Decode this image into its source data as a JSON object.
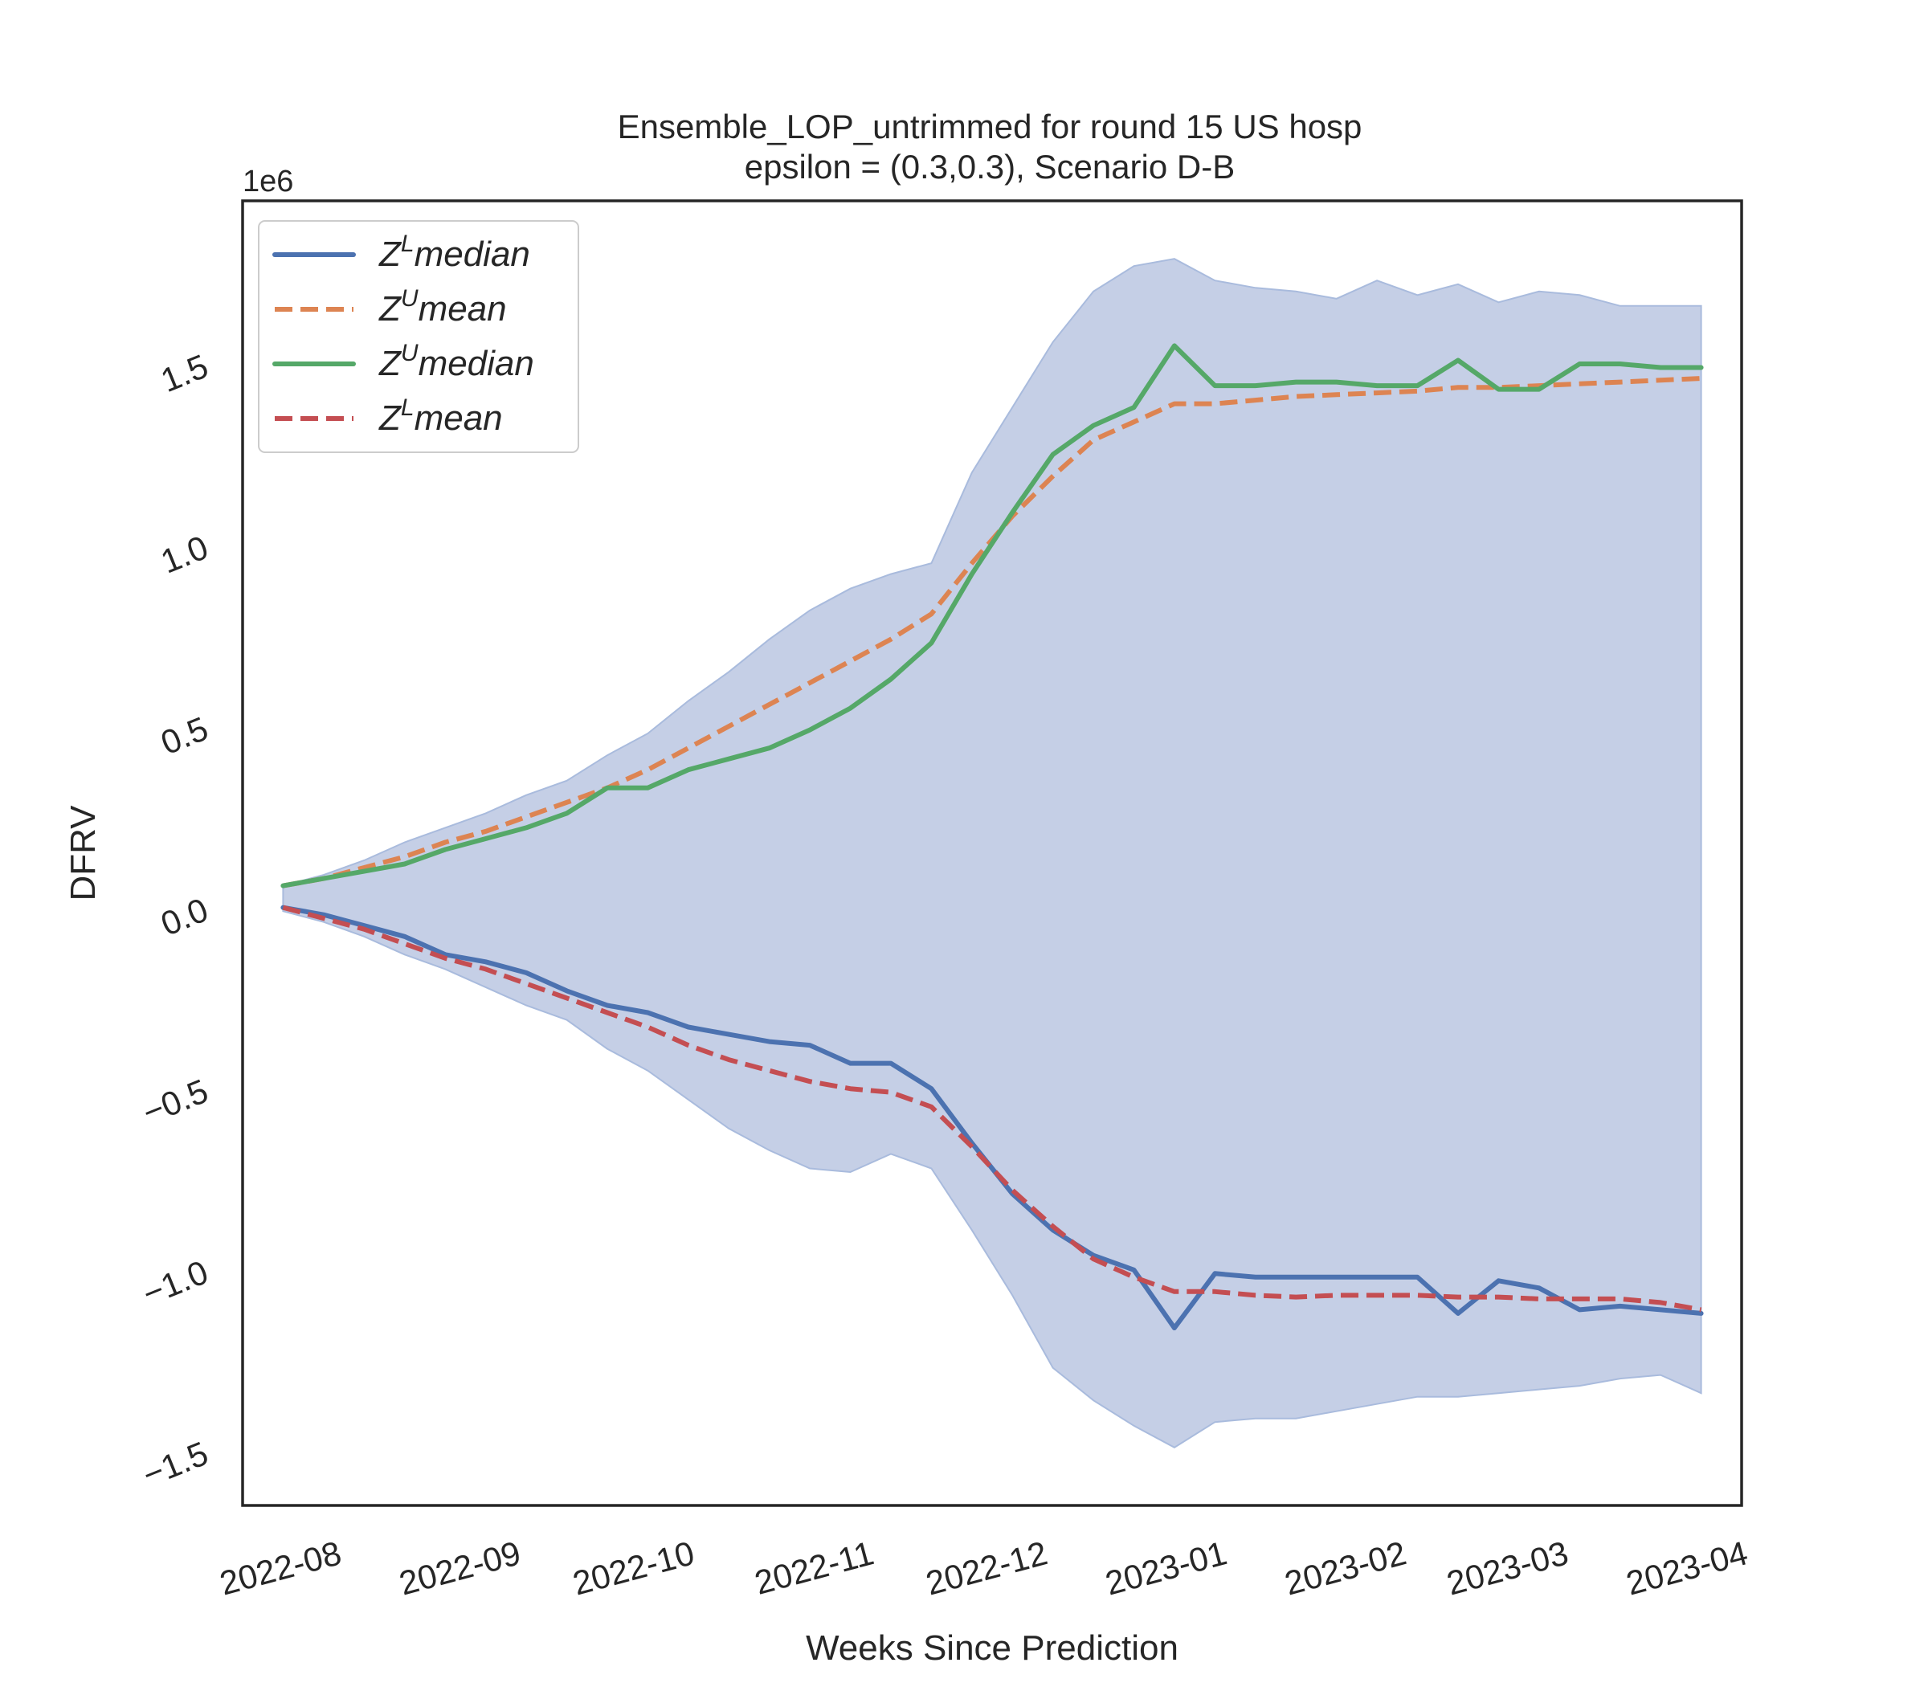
{
  "chart_data": {
    "type": "line",
    "title": "Ensemble_LOP_untrimmed for round 15 US  hosp",
    "subtitle": "epsilon = (0.3,0.3), Scenario D-B",
    "xlabel": "Weeks Since Prediction",
    "ylabel": "DFRV",
    "y_offset_label": "1e6",
    "ylim": [
      -1.65,
      1.95
    ],
    "y_ticks": [
      -1.5,
      -1.0,
      -0.5,
      0.0,
      0.5,
      1.0,
      1.5
    ],
    "y_tick_labels": [
      "−1.5",
      "−1.0",
      "−0.5",
      "0.0",
      "0.5",
      "1.0",
      "1.5"
    ],
    "x_ticks": [
      "2022-08",
      "2022-09",
      "2022-10",
      "2022-11",
      "2022-12",
      "2023-01",
      "2023-02",
      "2023-03",
      "2023-04"
    ],
    "x_start": "2022-07-16",
    "x_end": "2023-04-01",
    "x": [
      "2022-07-23",
      "2022-07-30",
      "2022-08-06",
      "2022-08-13",
      "2022-08-20",
      "2022-08-27",
      "2022-09-03",
      "2022-09-10",
      "2022-09-17",
      "2022-09-24",
      "2022-10-01",
      "2022-10-08",
      "2022-10-15",
      "2022-10-22",
      "2022-10-29",
      "2022-11-05",
      "2022-11-12",
      "2022-11-19",
      "2022-11-26",
      "2022-12-03",
      "2022-12-10",
      "2022-12-17",
      "2022-12-24",
      "2022-12-31",
      "2023-01-07",
      "2023-01-14",
      "2023-01-21",
      "2023-01-28",
      "2023-02-04",
      "2023-02-11",
      "2023-02-18",
      "2023-02-25",
      "2023-03-04",
      "2023-03-11",
      "2023-03-18",
      "2023-03-25"
    ],
    "band": {
      "upper": [
        0.06,
        0.09,
        0.13,
        0.18,
        0.22,
        0.26,
        0.31,
        0.35,
        0.42,
        0.48,
        0.57,
        0.65,
        0.74,
        0.82,
        0.88,
        0.92,
        0.95,
        1.2,
        1.38,
        1.56,
        1.7,
        1.77,
        1.79,
        1.73,
        1.71,
        1.7,
        1.68,
        1.73,
        1.69,
        1.72,
        1.67,
        1.7,
        1.69,
        1.66,
        1.66,
        1.66
      ],
      "lower": [
        -0.01,
        -0.04,
        -0.08,
        -0.13,
        -0.17,
        -0.22,
        -0.27,
        -0.31,
        -0.39,
        -0.45,
        -0.53,
        -0.61,
        -0.67,
        -0.72,
        -0.73,
        -0.68,
        -0.72,
        -0.89,
        -1.07,
        -1.27,
        -1.36,
        -1.43,
        -1.49,
        -1.42,
        -1.41,
        -1.41,
        -1.39,
        -1.37,
        -1.35,
        -1.35,
        -1.34,
        -1.33,
        -1.32,
        -1.3,
        -1.29,
        -1.34
      ],
      "color": "#c5cfe6"
    },
    "series": [
      {
        "name": "Z^L median",
        "color": "#4c72b0",
        "dash": false,
        "values": [
          0.0,
          -0.02,
          -0.05,
          -0.08,
          -0.13,
          -0.15,
          -0.18,
          -0.23,
          -0.27,
          -0.29,
          -0.33,
          -0.35,
          -0.37,
          -0.38,
          -0.43,
          -0.43,
          -0.5,
          -0.65,
          -0.79,
          -0.89,
          -0.96,
          -1.0,
          -1.16,
          -1.01,
          -1.02,
          -1.02,
          -1.02,
          -1.02,
          -1.02,
          -1.12,
          -1.03,
          -1.05,
          -1.11,
          -1.1,
          -1.11,
          -1.12
        ]
      },
      {
        "name": "Z^U mean",
        "color": "#dd8452",
        "dash": true,
        "values": [
          0.06,
          0.08,
          0.11,
          0.14,
          0.18,
          0.21,
          0.25,
          0.29,
          0.33,
          0.38,
          0.44,
          0.5,
          0.56,
          0.62,
          0.68,
          0.74,
          0.81,
          0.95,
          1.08,
          1.19,
          1.29,
          1.34,
          1.39,
          1.39,
          1.4,
          1.41,
          1.415,
          1.42,
          1.425,
          1.435,
          1.435,
          1.44,
          1.445,
          1.45,
          1.455,
          1.46
        ]
      },
      {
        "name": "Z^U median",
        "color": "#55a868",
        "dash": false,
        "values": [
          0.06,
          0.08,
          0.1,
          0.12,
          0.16,
          0.19,
          0.22,
          0.26,
          0.33,
          0.33,
          0.38,
          0.41,
          0.44,
          0.49,
          0.55,
          0.63,
          0.73,
          0.92,
          1.09,
          1.25,
          1.33,
          1.38,
          1.55,
          1.44,
          1.44,
          1.45,
          1.45,
          1.44,
          1.44,
          1.51,
          1.43,
          1.43,
          1.5,
          1.5,
          1.49,
          1.49
        ]
      },
      {
        "name": "Z^L mean",
        "color": "#c44e52",
        "dash": true,
        "values": [
          0.0,
          -0.03,
          -0.06,
          -0.1,
          -0.14,
          -0.17,
          -0.21,
          -0.25,
          -0.29,
          -0.33,
          -0.38,
          -0.42,
          -0.45,
          -0.48,
          -0.5,
          -0.51,
          -0.55,
          -0.66,
          -0.78,
          -0.88,
          -0.97,
          -1.02,
          -1.06,
          -1.06,
          -1.07,
          -1.075,
          -1.07,
          -1.07,
          -1.07,
          -1.075,
          -1.075,
          -1.08,
          -1.08,
          -1.08,
          -1.09,
          -1.11
        ]
      }
    ],
    "legend": {
      "placement": "top-left",
      "entries": [
        {
          "base": "Z",
          "sup": "L",
          "rest": "median",
          "color": "#4c72b0",
          "dash": false
        },
        {
          "base": "Z",
          "sup": "U",
          "rest": "mean",
          "color": "#dd8452",
          "dash": true
        },
        {
          "base": "Z",
          "sup": "U",
          "rest": "median",
          "color": "#55a868",
          "dash": false
        },
        {
          "base": "Z",
          "sup": "L",
          "rest": "mean",
          "color": "#c44e52",
          "dash": true
        }
      ]
    },
    "grid": false
  }
}
